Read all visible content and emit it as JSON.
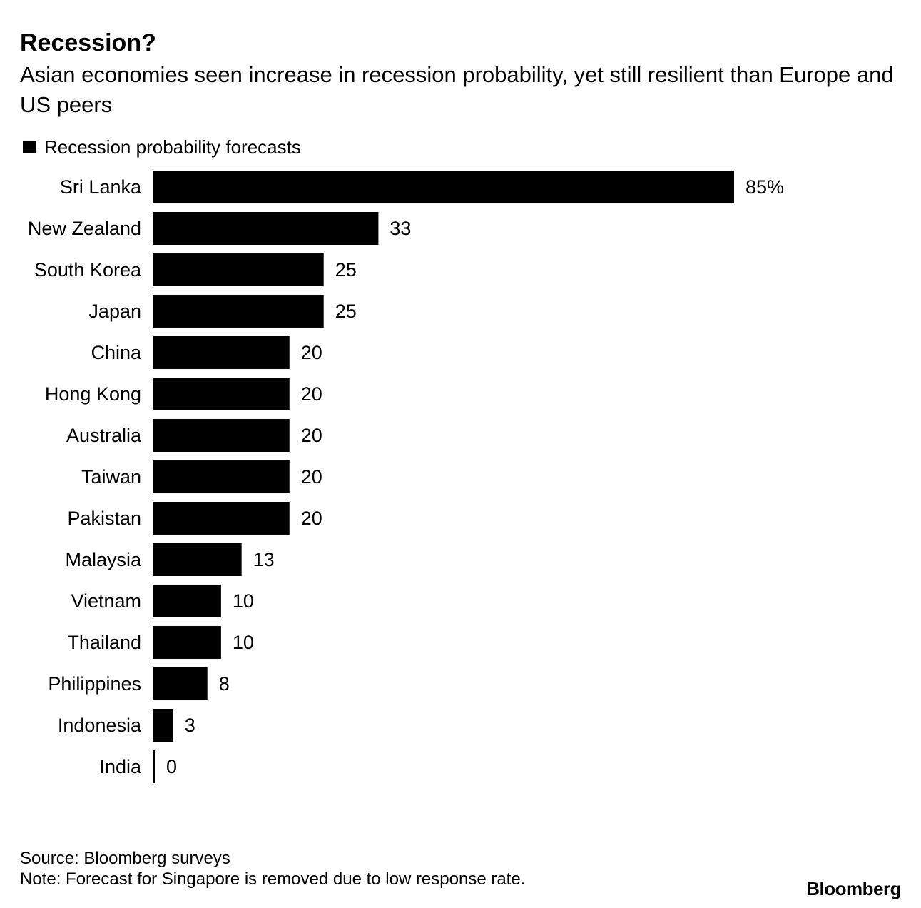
{
  "header": {
    "title": "Recession?",
    "subtitle": "Asian economies seen increase in recession probability, yet still resilient than Europe and US peers"
  },
  "legend": {
    "label": "Recession probability forecasts",
    "color": "#000000"
  },
  "footer": {
    "source": "Source: Bloomberg surveys",
    "note": "Note: Forecast for Singapore is removed due to low response rate.",
    "brand": "Bloomberg"
  },
  "chart_data": {
    "type": "bar",
    "orientation": "horizontal",
    "title": "Recession?",
    "subtitle": "Asian economies seen increase in recession probability, yet still resilient than Europe and US peers",
    "xlabel": "",
    "ylabel": "",
    "unit_suffix_first_label": "%",
    "xlim": [
      0,
      85
    ],
    "grid": false,
    "legend_position": "top-left",
    "bar_color": "#000000",
    "categories": [
      "Sri Lanka",
      "New Zealand",
      "South Korea",
      "Japan",
      "China",
      "Hong Kong",
      "Australia",
      "Taiwan",
      "Pakistan",
      "Malaysia",
      "Vietnam",
      "Thailand",
      "Philippines",
      "Indonesia",
      "India"
    ],
    "series": [
      {
        "name": "Recession probability forecasts",
        "values": [
          85,
          33,
          25,
          25,
          20,
          20,
          20,
          20,
          20,
          13,
          10,
          10,
          8,
          3,
          0
        ],
        "labels": [
          "85%",
          "33",
          "25",
          "25",
          "20",
          "20",
          "20",
          "20",
          "20",
          "13",
          "10",
          "10",
          "8",
          "3",
          "0"
        ]
      }
    ]
  }
}
